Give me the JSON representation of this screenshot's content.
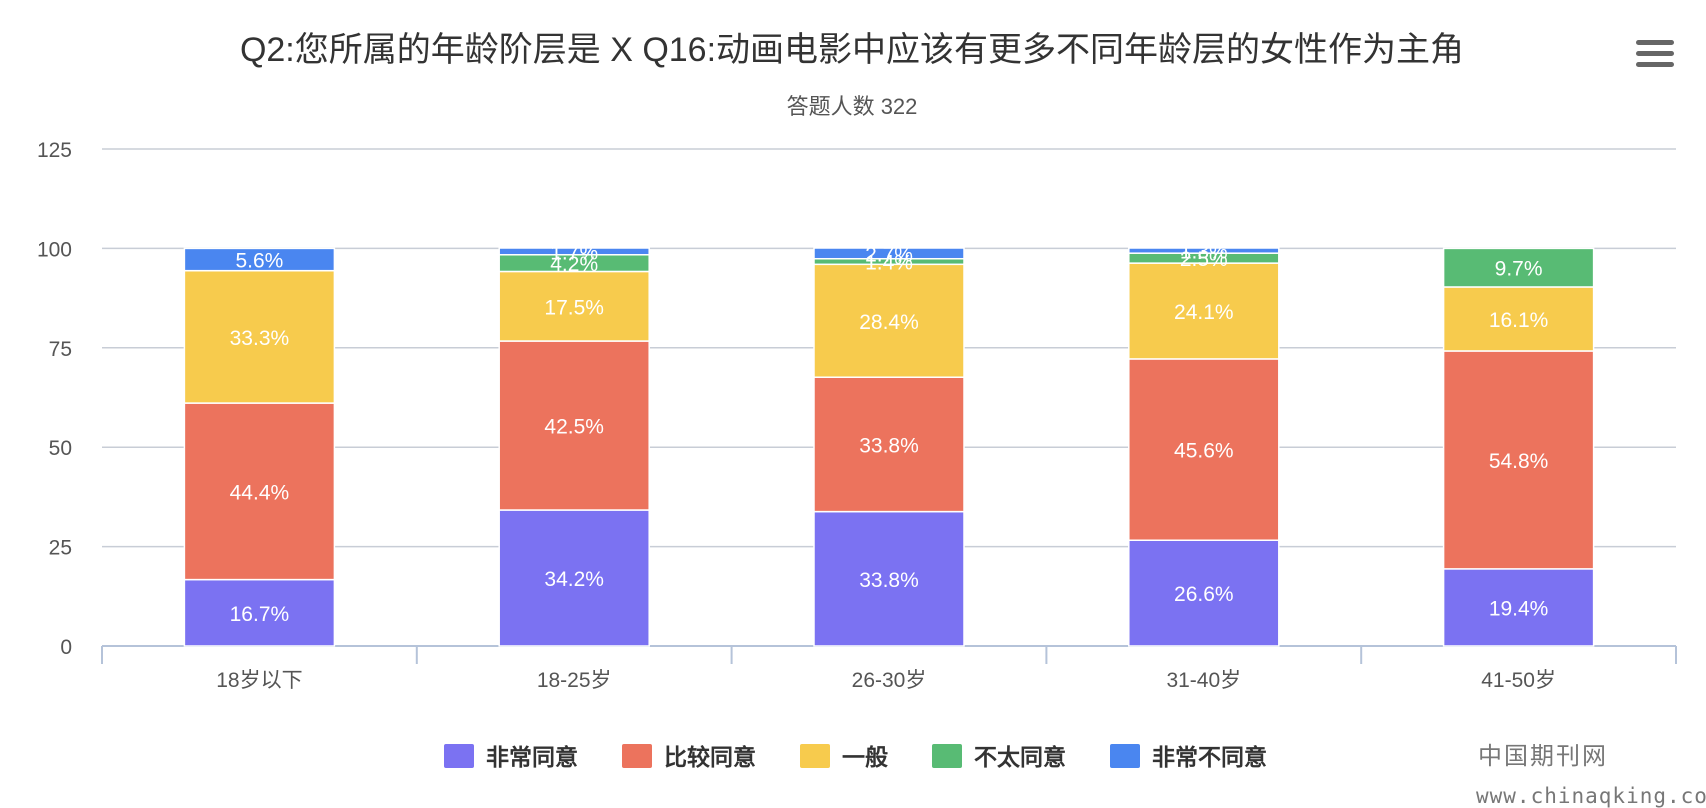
{
  "chart_data": {
    "type": "bar",
    "stacked": true,
    "title": "Q2:您所属的年龄阶层是 X Q16:动画电影中应该有更多不同年龄层的女性作为主角",
    "subtitle": "答题人数 322",
    "xlabel": "",
    "ylabel": "",
    "ylim": [
      0,
      125
    ],
    "yticks": [
      0,
      25,
      50,
      75,
      100,
      125
    ],
    "grid": true,
    "legend_position": "bottom",
    "categories": [
      "18岁以下",
      "18-25岁",
      "26-30岁",
      "31-40岁",
      "41-50岁"
    ],
    "series": [
      {
        "name": "非常同意",
        "color": "#7b72f2",
        "values": [
          16.7,
          34.2,
          33.8,
          26.6,
          19.4
        ],
        "labels": [
          "16.7%",
          "34.2%",
          "33.8%",
          "26.6%",
          "19.4%"
        ]
      },
      {
        "name": "比较同意",
        "color": "#ec735d",
        "values": [
          44.4,
          42.5,
          33.8,
          45.6,
          54.8
        ],
        "labels": [
          "44.4%",
          "42.5%",
          "33.8%",
          "45.6%",
          "54.8%"
        ]
      },
      {
        "name": "一般",
        "color": "#f7cb4d",
        "values": [
          33.3,
          17.5,
          28.4,
          24.1,
          16.1
        ],
        "labels": [
          "33.3%",
          "17.5%",
          "28.4%",
          "24.1%",
          "16.1%"
        ]
      },
      {
        "name": "不太同意",
        "color": "#58bb74",
        "values": [
          0,
          4.2,
          1.4,
          2.5,
          9.7
        ],
        "labels": [
          "",
          "4.2%",
          "1.4%",
          "2.5%",
          "9.7%"
        ]
      },
      {
        "name": "非常不同意",
        "color": "#4a86f0",
        "values": [
          5.6,
          1.7,
          2.7,
          1.3,
          0
        ],
        "labels": [
          "5.6%",
          "1.7%",
          "2.7%",
          "1.3%",
          ""
        ]
      }
    ]
  },
  "watermark": {
    "text_cn": "中国期刊网",
    "url": "www.chinaqking.com"
  },
  "menu": {
    "icon": "hamburger-menu-icon"
  }
}
